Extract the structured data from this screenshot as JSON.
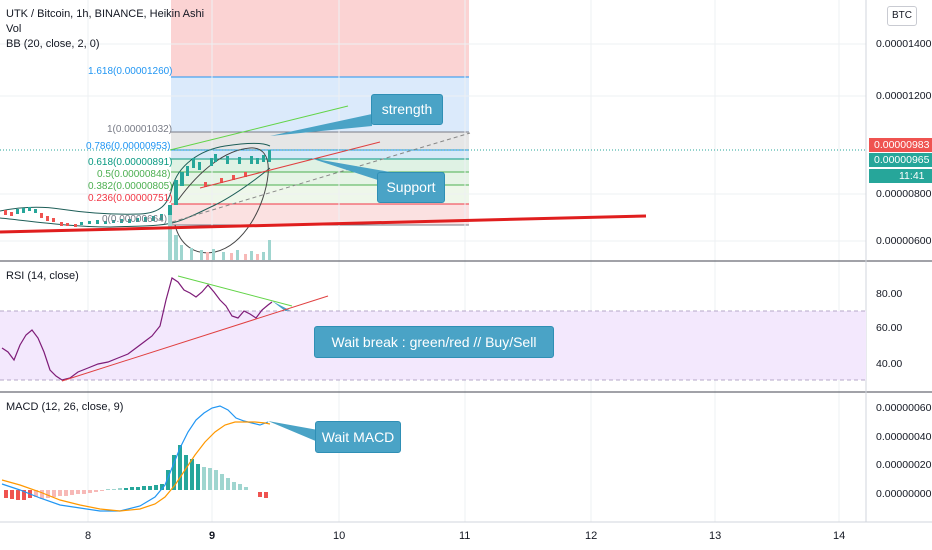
{
  "header": {
    "title": "UTK / Bitcoin, 1h, BINANCE, Heikin Ashi",
    "vol": "Vol",
    "bb": "BB (20, close, 2, 0)",
    "currency_button": "BTC"
  },
  "price_axis": {
    "ticks": [
      "0.00001400",
      "0.00001200",
      "0.00000800",
      "0.00000600"
    ],
    "tag_last": "0.00000983",
    "tag_current": "0.00000965",
    "tag_timer": "11:41"
  },
  "fibonacci": {
    "levels": [
      {
        "label": "1.618(0.00001260)",
        "color": "#2196f3"
      },
      {
        "label": "1(0.00001032)",
        "color": "#787b86"
      },
      {
        "label": "0.786(0.00000953)",
        "color": "#2196f3"
      },
      {
        "label": "0.618(0.00000891)",
        "color": "#089981"
      },
      {
        "label": "0.5(0.00000848)",
        "color": "#4caf50"
      },
      {
        "label": "0.382(0.00000805)",
        "color": "#4caf50"
      },
      {
        "label": "0.236(0.00000751)",
        "color": "#f23645"
      },
      {
        "label": "0(0.00000664)",
        "color": "#787b86"
      }
    ]
  },
  "rsi": {
    "title": "RSI (14, close)",
    "ticks": [
      "80.00",
      "60.00",
      "40.00"
    ]
  },
  "macd": {
    "title": "MACD (12, 26, close, 9)",
    "ticks": [
      "0.00000060",
      "0.00000040",
      "0.00000020",
      "0.00000000"
    ]
  },
  "time_axis": {
    "ticks": [
      "8",
      "9",
      "10",
      "11",
      "12",
      "13",
      "14"
    ]
  },
  "annotations": {
    "strength": "strength",
    "support": "Support",
    "rsi_note": "Wait break : green/red // Buy/Sell",
    "macd_note": "Wait MACD"
  },
  "colors": {
    "callout": "#4aa3c6",
    "bull": "#26a69a",
    "bear": "#ef5350",
    "rsi_band": "#f3e8fd",
    "last_price_tag": "#ef5350",
    "current_price_tag": "#26a69a"
  }
}
